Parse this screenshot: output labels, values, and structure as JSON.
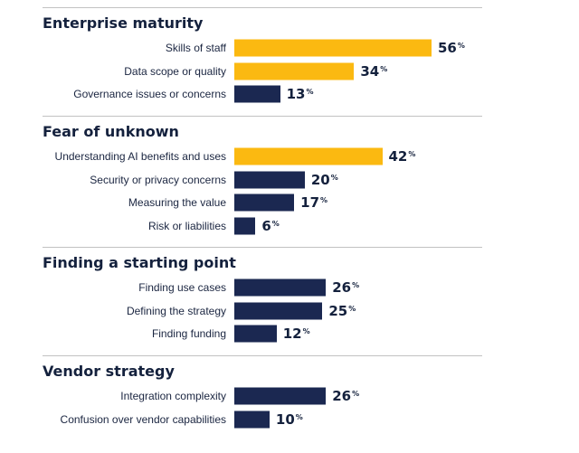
{
  "colors": {
    "highlight": "#fbb911",
    "navy": "#1b2851",
    "text": "#14213d"
  },
  "chart_data": {
    "type": "bar",
    "orientation": "horizontal",
    "unit": "%",
    "xlim": [
      0,
      56
    ],
    "groups": [
      {
        "title": "Enterprise maturity",
        "items": [
          {
            "label": "Skills of staff",
            "value": 56,
            "highlight": true
          },
          {
            "label": "Data scope or quality",
            "value": 34,
            "highlight": true
          },
          {
            "label": "Governance issues or concerns",
            "value": 13,
            "highlight": false
          }
        ]
      },
      {
        "title": "Fear of unknown",
        "items": [
          {
            "label": "Understanding AI benefits and uses",
            "value": 42,
            "highlight": true
          },
          {
            "label": "Security or privacy concerns",
            "value": 20,
            "highlight": false
          },
          {
            "label": "Measuring the value",
            "value": 17,
            "highlight": false
          },
          {
            "label": "Risk or liabilities",
            "value": 6,
            "highlight": false
          }
        ]
      },
      {
        "title": "Finding a starting point",
        "items": [
          {
            "label": "Finding use cases",
            "value": 26,
            "highlight": false
          },
          {
            "label": "Defining the strategy",
            "value": 25,
            "highlight": false
          },
          {
            "label": "Finding funding",
            "value": 12,
            "highlight": false
          }
        ]
      },
      {
        "title": "Vendor strategy",
        "items": [
          {
            "label": "Integration complexity",
            "value": 26,
            "highlight": false
          },
          {
            "label": "Confusion over vendor capabilities",
            "value": 10,
            "highlight": false
          }
        ]
      }
    ]
  }
}
